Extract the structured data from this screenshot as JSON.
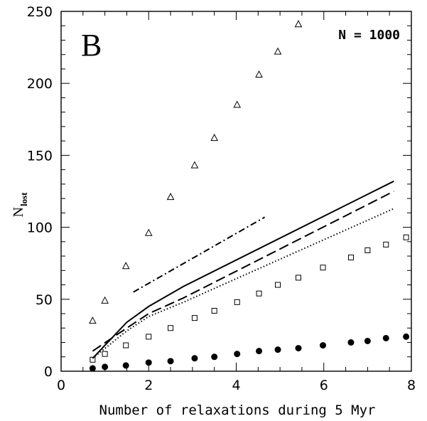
{
  "chart_data": {
    "type": "scatter",
    "panel_label": "B",
    "annotation": "N = 1000",
    "xlabel": "Number of relaxations during 5 Myr",
    "ylabel": "N",
    "ylabel_sub": "lost",
    "xlim": [
      0,
      8
    ],
    "ylim": [
      0,
      250
    ],
    "xticks": [
      0,
      2,
      4,
      6,
      8
    ],
    "yticks": [
      0,
      50,
      100,
      150,
      200,
      250
    ],
    "xtick_labels": [
      "0",
      "2",
      "4",
      "6",
      "8"
    ],
    "ytick_labels": [
      "0",
      "50",
      "100",
      "150",
      "200",
      "250"
    ],
    "grid": false,
    "series": [
      {
        "marker": "open-triangle",
        "points": [
          [
            0.72,
            35
          ],
          [
            1.0,
            49
          ],
          [
            1.48,
            73
          ],
          [
            2.0,
            96
          ],
          [
            2.5,
            121
          ],
          [
            3.05,
            143
          ],
          [
            3.5,
            162
          ],
          [
            4.02,
            185
          ],
          [
            4.52,
            206
          ],
          [
            4.95,
            222
          ],
          [
            5.42,
            241
          ]
        ]
      },
      {
        "marker": "open-square",
        "points": [
          [
            0.72,
            8
          ],
          [
            1.0,
            12
          ],
          [
            1.48,
            18
          ],
          [
            2.0,
            24
          ],
          [
            2.5,
            30
          ],
          [
            3.05,
            37
          ],
          [
            3.5,
            42
          ],
          [
            4.02,
            48
          ],
          [
            4.52,
            54
          ],
          [
            4.95,
            60
          ],
          [
            5.42,
            65
          ],
          [
            5.98,
            72
          ],
          [
            6.62,
            79
          ],
          [
            7.0,
            84
          ],
          [
            7.42,
            88
          ],
          [
            7.88,
            93
          ]
        ]
      },
      {
        "marker": "filled-circle",
        "points": [
          [
            0.72,
            2
          ],
          [
            1.0,
            3
          ],
          [
            1.48,
            4
          ],
          [
            2.0,
            6
          ],
          [
            2.5,
            7
          ],
          [
            3.05,
            9
          ],
          [
            3.5,
            10
          ],
          [
            4.02,
            12
          ],
          [
            4.52,
            14
          ],
          [
            4.95,
            15
          ],
          [
            5.42,
            16
          ],
          [
            5.98,
            18
          ],
          [
            6.62,
            20
          ],
          [
            7.0,
            21
          ],
          [
            7.42,
            23
          ],
          [
            7.88,
            24
          ]
        ]
      },
      {
        "line": "solid",
        "points": [
          [
            0.72,
            9
          ],
          [
            1.5,
            34
          ],
          [
            2.0,
            45
          ],
          [
            2.8,
            59
          ],
          [
            7.6,
            132
          ]
        ]
      },
      {
        "line": "dashed",
        "points": [
          [
            0.72,
            14
          ],
          [
            1.5,
            30
          ],
          [
            2.0,
            40
          ],
          [
            2.8,
            51
          ],
          [
            7.6,
            125
          ]
        ]
      },
      {
        "line": "dotted",
        "points": [
          [
            0.72,
            9
          ],
          [
            1.5,
            28
          ],
          [
            2.0,
            38
          ],
          [
            2.8,
            48
          ],
          [
            7.6,
            113
          ]
        ]
      },
      {
        "line": "dash-dot",
        "points": [
          [
            1.65,
            55
          ],
          [
            4.65,
            107
          ]
        ]
      }
    ]
  }
}
